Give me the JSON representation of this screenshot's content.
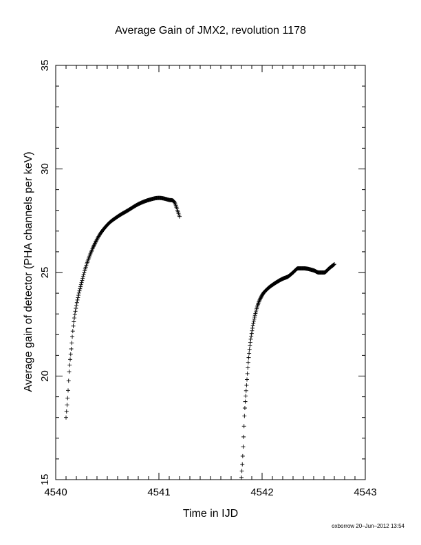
{
  "chart_data": {
    "type": "scatter",
    "title": "Average Gain of JMX2, revolution 1178",
    "xlabel": "Time in IJD",
    "ylabel": "Average gain of detector (PHA channels per keV)",
    "xlim": [
      4540,
      4543
    ],
    "ylim": [
      15,
      35
    ],
    "xticks": [
      "4540",
      "4541",
      "4542",
      "4543"
    ],
    "yticks": [
      "15",
      "20",
      "25",
      "30",
      "35"
    ],
    "marker": "+",
    "grid": false,
    "series": [
      {
        "points": [
          [
            4540.1,
            18.0
          ],
          [
            4540.11,
            18.6
          ],
          [
            4540.12,
            19.3
          ],
          [
            4540.13,
            20.2
          ],
          [
            4540.15,
            21.3
          ],
          [
            4540.17,
            22.4
          ],
          [
            4540.2,
            23.4
          ],
          [
            4540.25,
            24.5
          ],
          [
            4540.3,
            25.4
          ],
          [
            4540.4,
            26.6
          ],
          [
            4540.5,
            27.3
          ],
          [
            4540.6,
            27.7
          ],
          [
            4540.7,
            28.0
          ],
          [
            4540.8,
            28.3
          ],
          [
            4540.9,
            28.5
          ],
          [
            4541.0,
            28.6
          ],
          [
            4541.1,
            28.5
          ],
          [
            4541.15,
            28.4
          ],
          [
            4541.18,
            28.0
          ],
          [
            4541.2,
            27.7
          ]
        ]
      },
      {
        "points": [
          [
            4541.8,
            15.1
          ],
          [
            4541.81,
            15.9
          ],
          [
            4541.82,
            17.0
          ],
          [
            4541.83,
            18.2
          ],
          [
            4541.85,
            19.6
          ],
          [
            4541.87,
            20.9
          ],
          [
            4541.9,
            22.1
          ],
          [
            4541.95,
            23.3
          ],
          [
            4542.0,
            23.9
          ],
          [
            4542.05,
            24.2
          ],
          [
            4542.1,
            24.4
          ],
          [
            4542.2,
            24.7
          ],
          [
            4542.25,
            24.8
          ],
          [
            4542.3,
            25.0
          ],
          [
            4542.35,
            25.2
          ],
          [
            4542.4,
            25.2
          ],
          [
            4542.5,
            25.1
          ],
          [
            4542.55,
            25.0
          ],
          [
            4542.6,
            25.0
          ],
          [
            4542.65,
            25.2
          ],
          [
            4542.7,
            25.4
          ]
        ]
      }
    ]
  },
  "footer": {
    "stamp": "oxborrow 20–Jun–2012 13:54"
  }
}
